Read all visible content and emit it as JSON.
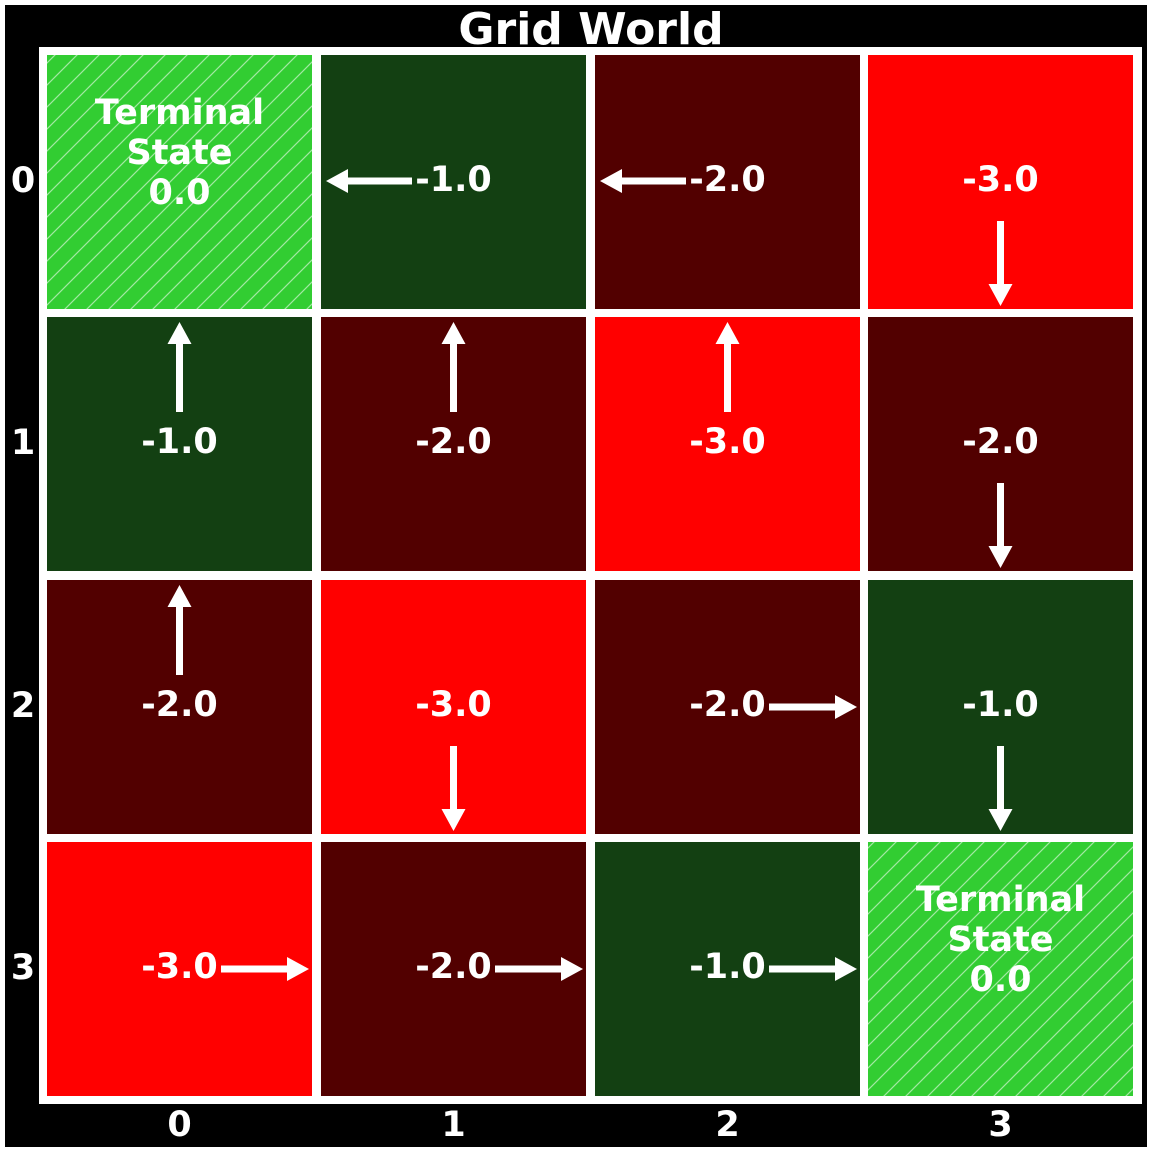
{
  "title": "Grid World",
  "x_ticks": [
    "0",
    "1",
    "2",
    "3"
  ],
  "y_ticks": [
    "0",
    "1",
    "2",
    "3"
  ],
  "terminal_label": [
    "Terminal",
    "State"
  ],
  "colors": {
    "background": "#000000",
    "grid_line": "#ffffff",
    "text": "#ffffff",
    "terminal": "#32cd32",
    "value_-1": "#134012",
    "value_-2": "#520000",
    "value_-3": "#ff0000"
  },
  "cells": [
    [
      {
        "value": "0.0",
        "terminal": true,
        "arrow": null
      },
      {
        "value": "-1.0",
        "terminal": false,
        "arrow": "left"
      },
      {
        "value": "-2.0",
        "terminal": false,
        "arrow": "left"
      },
      {
        "value": "-3.0",
        "terminal": false,
        "arrow": "down"
      }
    ],
    [
      {
        "value": "-1.0",
        "terminal": false,
        "arrow": "up"
      },
      {
        "value": "-2.0",
        "terminal": false,
        "arrow": "up"
      },
      {
        "value": "-3.0",
        "terminal": false,
        "arrow": "up"
      },
      {
        "value": "-2.0",
        "terminal": false,
        "arrow": "down"
      }
    ],
    [
      {
        "value": "-2.0",
        "terminal": false,
        "arrow": "up"
      },
      {
        "value": "-3.0",
        "terminal": false,
        "arrow": "down"
      },
      {
        "value": "-2.0",
        "terminal": false,
        "arrow": "right"
      },
      {
        "value": "-1.0",
        "terminal": false,
        "arrow": "down"
      }
    ],
    [
      {
        "value": "-3.0",
        "terminal": false,
        "arrow": "right"
      },
      {
        "value": "-2.0",
        "terminal": false,
        "arrow": "right"
      },
      {
        "value": "-1.0",
        "terminal": false,
        "arrow": "right"
      },
      {
        "value": "0.0",
        "terminal": true,
        "arrow": null
      }
    ]
  ]
}
